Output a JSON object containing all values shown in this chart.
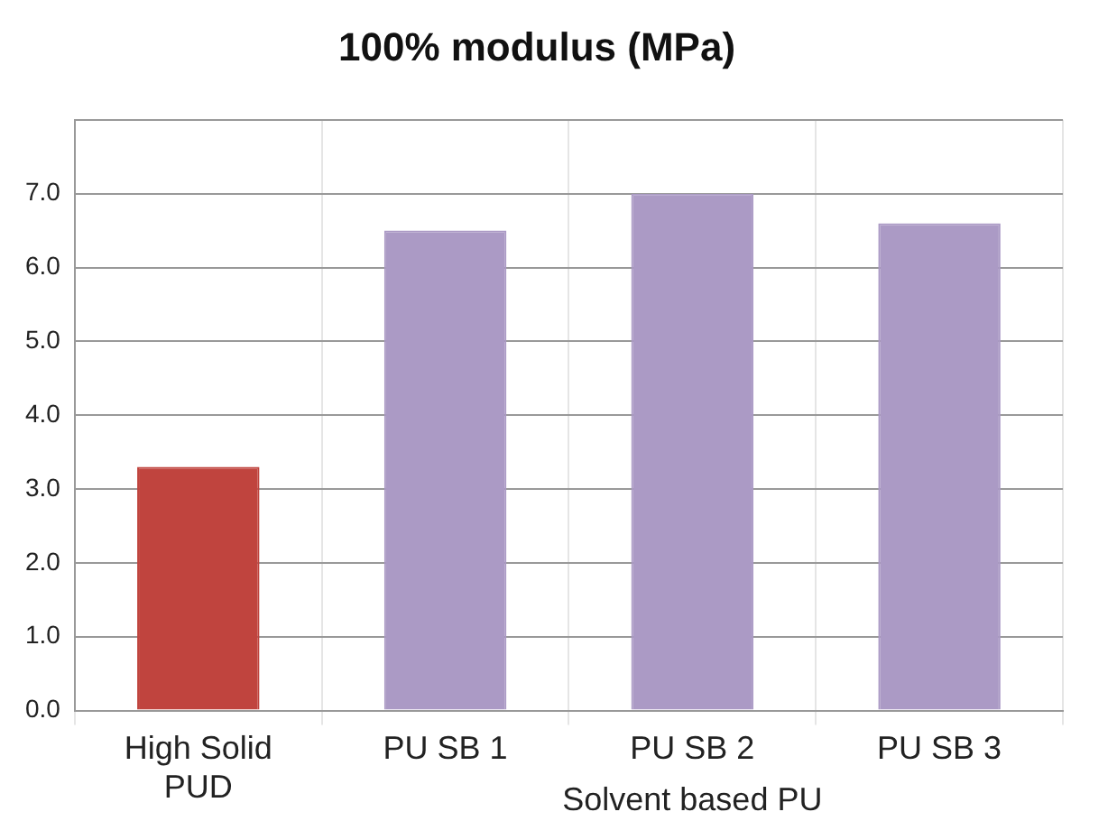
{
  "chart_data": {
    "type": "bar",
    "title": "100% modulus (MPa)",
    "categories": [
      "High Solid PUD",
      "PU SB 1",
      "PU SB 2",
      "PU SB 3"
    ],
    "values": [
      3.3,
      6.5,
      7.0,
      6.6
    ],
    "colors": [
      "#c0443e",
      "#ab9ac5",
      "#ab9ac5",
      "#ab9ac5"
    ],
    "ylim": [
      0,
      8
    ],
    "yticks": [
      {
        "value": 0,
        "label": "0.0"
      },
      {
        "value": 1,
        "label": "1.0"
      },
      {
        "value": 2,
        "label": "2.0"
      },
      {
        "value": 3,
        "label": "3.0"
      },
      {
        "value": 4,
        "label": "4.0"
      },
      {
        "value": 5,
        "label": "5.0"
      },
      {
        "value": 6,
        "label": "6.0"
      },
      {
        "value": 7,
        "label": "7.0"
      },
      {
        "value": 8,
        "label": null
      }
    ],
    "annotations": [
      "Solvent based PU"
    ],
    "grid": true,
    "legend": false
  }
}
